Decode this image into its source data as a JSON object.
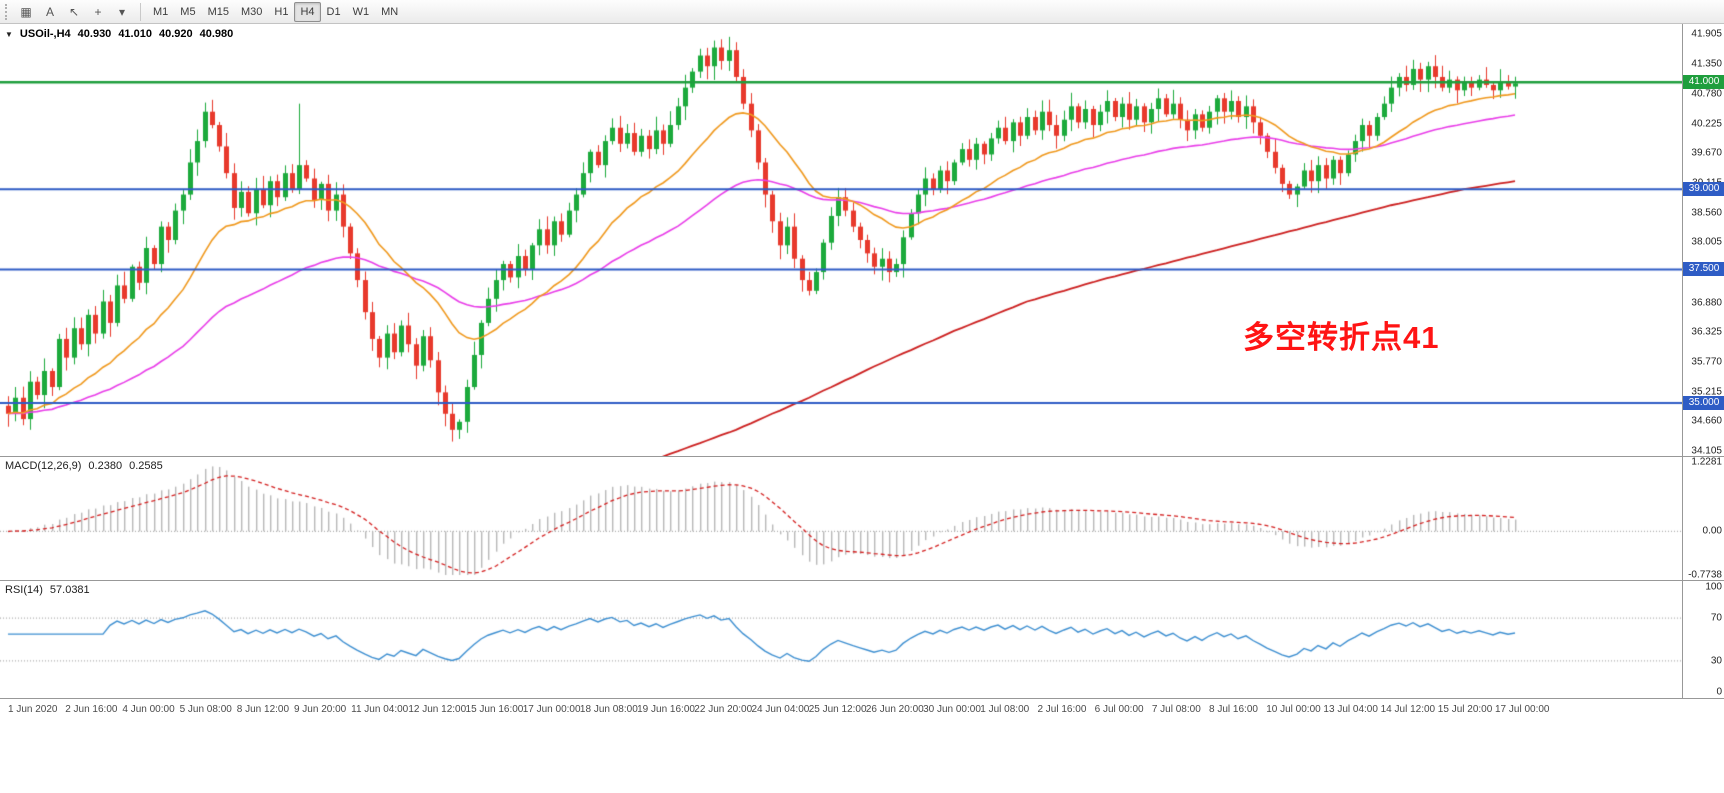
{
  "toolbar": {
    "icon_buttons": [
      {
        "name": "chart-type-icon",
        "glyph": "▦"
      },
      {
        "name": "annotation-a-button",
        "glyph": "A"
      },
      {
        "name": "cursor-tool-icon",
        "glyph": "↖"
      },
      {
        "name": "crosshair-tool-icon",
        "glyph": "+"
      },
      {
        "name": "tools-dropdown-icon",
        "glyph": "▾"
      }
    ],
    "timeframes": [
      "M1",
      "M5",
      "M15",
      "M30",
      "H1",
      "H4",
      "D1",
      "W1",
      "MN"
    ],
    "active_timeframe": "H4"
  },
  "chart": {
    "symbol_period": "USOil-,H4",
    "ohlc": {
      "open": "40.930",
      "high": "41.010",
      "low": "40.920",
      "close": "40.980"
    },
    "annotation": {
      "text": "多空转折点41",
      "color": "#ff1414"
    }
  },
  "macd": {
    "name": "MACD(12,26,9)",
    "value_main": "0.2380",
    "value_signal": "0.2585"
  },
  "rsi": {
    "name": "RSI(14)",
    "value": "57.0381"
  },
  "chart_data": {
    "type": "candlestick",
    "symbol": "USOil",
    "timeframe": "H4",
    "price_axis": {
      "max": 42.09,
      "min": 34.01,
      "ticks": [
        {
          "t": "41.905",
          "v": 41.905
        },
        {
          "t": "41.350",
          "v": 41.35
        },
        {
          "t": "40.780",
          "v": 40.78
        },
        {
          "t": "40.225",
          "v": 40.225
        },
        {
          "t": "39.670",
          "v": 39.67
        },
        {
          "t": "39.115",
          "v": 39.115
        },
        {
          "t": "38.560",
          "v": 38.56
        },
        {
          "t": "38.005",
          "v": 38.005
        },
        {
          "t": "36.880",
          "v": 36.88
        },
        {
          "t": "36.325",
          "v": 36.325
        },
        {
          "t": "35.770",
          "v": 35.77
        },
        {
          "t": "35.215",
          "v": 35.215
        },
        {
          "t": "34.660",
          "v": 34.66
        },
        {
          "t": "34.105",
          "v": 34.105
        }
      ]
    },
    "levels": [
      {
        "label": "41.000",
        "value": 41.0,
        "color": "#1f9e3d",
        "width": 2.5
      },
      {
        "label": "39.000",
        "value": 39.0,
        "color": "#2e5cc5",
        "width": 2
      },
      {
        "label": "37.500",
        "value": 37.5,
        "color": "#2e5cc5",
        "width": 2
      },
      {
        "label": "35.000",
        "value": 35.0,
        "color": "#2e5cc5",
        "width": 2
      }
    ],
    "time_labels": [
      "1 Jun 2020",
      "2 Jun 16:00",
      "4 Jun 00:00",
      "5 Jun 08:00",
      "8 Jun 12:00",
      "9 Jun 20:00",
      "11 Jun 04:00",
      "12 Jun 12:00",
      "15 Jun 16:00",
      "17 Jun 00:00",
      "18 Jun 08:00",
      "19 Jun 16:00",
      "22 Jun 20:00",
      "24 Jun 04:00",
      "25 Jun 12:00",
      "26 Jun 20:00",
      "30 Jun 00:00",
      "1 Jul 08:00",
      "2 Jul 16:00",
      "6 Jul 00:00",
      "7 Jul 08:00",
      "8 Jul 16:00",
      "10 Jul 00:00",
      "13 Jul 04:00",
      "14 Jul 12:00",
      "15 Jul 20:00",
      "17 Jul 00:00"
    ],
    "first_open": 34.95,
    "closes": [
      34.8,
      35.1,
      34.7,
      35.4,
      35.15,
      35.6,
      35.3,
      36.2,
      35.85,
      36.4,
      36.1,
      36.65,
      36.3,
      36.9,
      36.5,
      37.2,
      36.95,
      37.55,
      37.25,
      37.9,
      37.6,
      38.3,
      38.05,
      38.6,
      38.9,
      39.5,
      39.9,
      40.45,
      40.2,
      39.8,
      39.3,
      38.65,
      38.95,
      38.55,
      39.0,
      38.7,
      39.15,
      38.85,
      39.3,
      39.0,
      39.45,
      39.2,
      38.8,
      39.1,
      38.6,
      38.9,
      38.3,
      37.8,
      37.3,
      36.7,
      36.2,
      35.85,
      36.3,
      35.95,
      36.45,
      36.1,
      35.7,
      36.25,
      35.8,
      35.2,
      34.8,
      34.5,
      34.65,
      35.3,
      35.9,
      36.5,
      36.95,
      37.3,
      37.6,
      37.35,
      37.75,
      37.5,
      37.95,
      38.25,
      37.95,
      38.4,
      38.15,
      38.6,
      38.9,
      39.3,
      39.7,
      39.45,
      39.9,
      40.15,
      39.85,
      40.05,
      39.7,
      40.0,
      39.75,
      40.1,
      39.85,
      40.2,
      40.55,
      40.9,
      41.2,
      41.5,
      41.3,
      41.65,
      41.4,
      41.6,
      41.1,
      40.6,
      40.1,
      39.5,
      38.9,
      38.4,
      37.95,
      38.3,
      37.7,
      37.3,
      37.1,
      37.45,
      38.0,
      38.5,
      38.85,
      38.6,
      38.3,
      38.05,
      37.8,
      37.55,
      37.7,
      37.45,
      37.6,
      38.1,
      38.55,
      38.9,
      39.2,
      39.0,
      39.35,
      39.15,
      39.5,
      39.75,
      39.55,
      39.85,
      39.65,
      39.95,
      40.15,
      39.9,
      40.25,
      40.0,
      40.35,
      40.1,
      40.45,
      40.2,
      40.0,
      40.3,
      40.55,
      40.25,
      40.5,
      40.2,
      40.45,
      40.65,
      40.35,
      40.6,
      40.3,
      40.55,
      40.25,
      40.5,
      40.7,
      40.4,
      40.6,
      40.3,
      40.1,
      40.4,
      40.15,
      40.45,
      40.7,
      40.45,
      40.65,
      40.35,
      40.55,
      40.25,
      40.0,
      39.7,
      39.4,
      39.1,
      38.9,
      39.05,
      39.35,
      39.15,
      39.45,
      39.2,
      39.55,
      39.3,
      39.65,
      39.9,
      40.2,
      40.0,
      40.35,
      40.6,
      40.9,
      41.1,
      40.95,
      41.25,
      41.05,
      41.3,
      41.1,
      40.9,
      41.05,
      40.85,
      41.0,
      40.9,
      41.05,
      40.95,
      40.85,
      41.0,
      40.92,
      40.98
    ],
    "wick_overrides": {
      "27": {
        "high": 40.62
      },
      "40": {
        "high": 40.6
      },
      "61": {
        "low": 34.28
      },
      "62": {
        "low": 34.33
      },
      "97": {
        "high": 41.78
      },
      "99": {
        "high": 41.85
      },
      "193": {
        "high": 41.42
      }
    },
    "moving_averages": {
      "fast_period": 21,
      "mid_period": 55,
      "slow_anchors": [
        [
          58,
          32.0
        ],
        [
          70,
          32.9
        ],
        [
          80,
          33.5
        ],
        [
          90,
          34.0
        ],
        [
          100,
          34.5
        ],
        [
          110,
          35.1
        ],
        [
          120,
          35.75
        ],
        [
          130,
          36.35
        ],
        [
          140,
          36.9
        ],
        [
          150,
          37.3
        ],
        [
          160,
          37.65
        ],
        [
          170,
          38.0
        ],
        [
          180,
          38.35
        ],
        [
          190,
          38.7
        ],
        [
          200,
          39.0
        ],
        [
          207,
          39.15
        ]
      ]
    },
    "macd_panel": {
      "params": [
        12,
        26,
        9
      ],
      "scale": [
        {
          "t": "1.2281",
          "v": 1.2281
        },
        {
          "t": "0.00",
          "v": 0
        },
        {
          "t": "-0.7738",
          "v": -0.7738
        }
      ]
    },
    "rsi_panel": {
      "period": 14,
      "scale": [
        {
          "t": "100",
          "v": 100
        },
        {
          "t": "70",
          "v": 70
        },
        {
          "t": "30",
          "v": 30
        },
        {
          "t": "0",
          "v": 0
        }
      ]
    },
    "colors": {
      "candle_up": "#1caa3c",
      "candle_down": "#e8392c",
      "ma_fast": "#f0991e",
      "ma_mid": "#e93ee9",
      "ma_slow": "#cc2020",
      "macd_hist": "#b9b9b9",
      "macd_signal": "#d42020",
      "rsi_line": "#3d8fd1",
      "dotted_grid": "#9a9a9a"
    }
  }
}
